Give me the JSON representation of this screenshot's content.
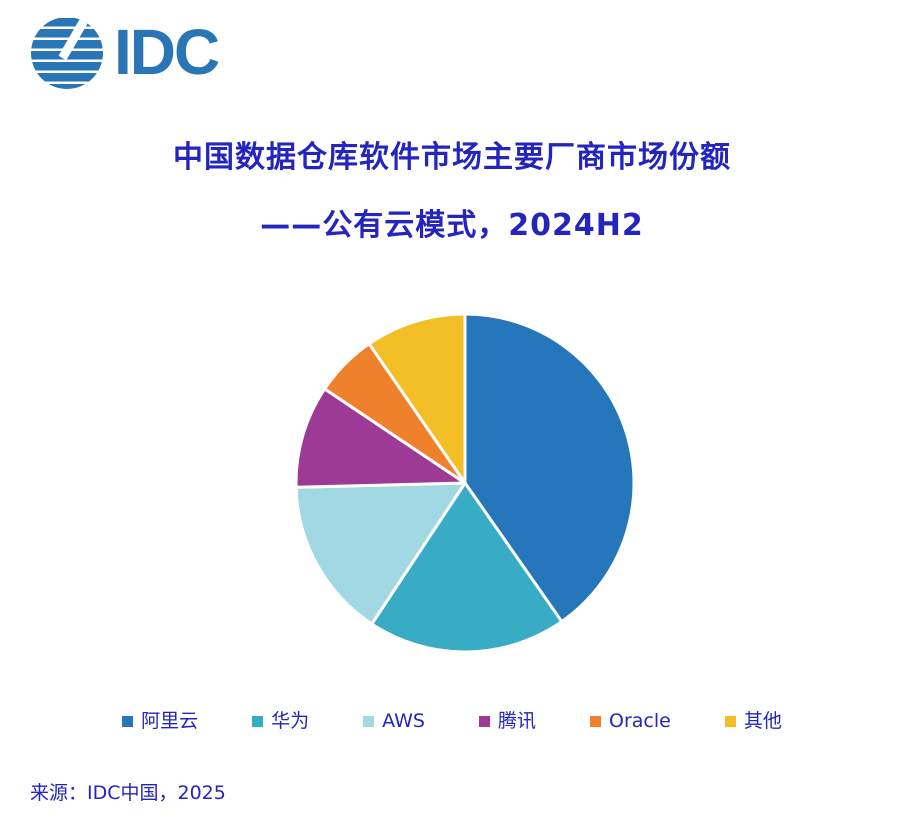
{
  "brand": {
    "logo_text": "IDC"
  },
  "colors": {
    "logo_blue": "#2A75B6",
    "text_blue": "#2424BE",
    "background": "#FFFFFF"
  },
  "header": {
    "title_line1": "中国数据仓库软件市场主要厂商市场份额",
    "title_line2": "——公有云模式，2024H2"
  },
  "chart_data": {
    "type": "pie",
    "title": "中国数据仓库软件市场主要厂商市场份额——公有云模式，2024H2",
    "labels": [
      "阿里云",
      "华为",
      "AWS",
      "腾讯",
      "Oracle",
      "其他"
    ],
    "values": [
      40.3,
      19.0,
      15.3,
      9.8,
      6.0,
      9.6
    ],
    "unit": "%",
    "colors": [
      "#2676BB",
      "#38ABC5",
      "#A2D8E4",
      "#9C3A96",
      "#F0812C",
      "#F2BF27"
    ],
    "start_angle_deg": 0,
    "direction": "clockwise",
    "slice_separator_color": "#FFFFFF",
    "data_labels": false,
    "legend_position": "bottom"
  },
  "footer": {
    "source": "来源：IDC中国，2025"
  }
}
